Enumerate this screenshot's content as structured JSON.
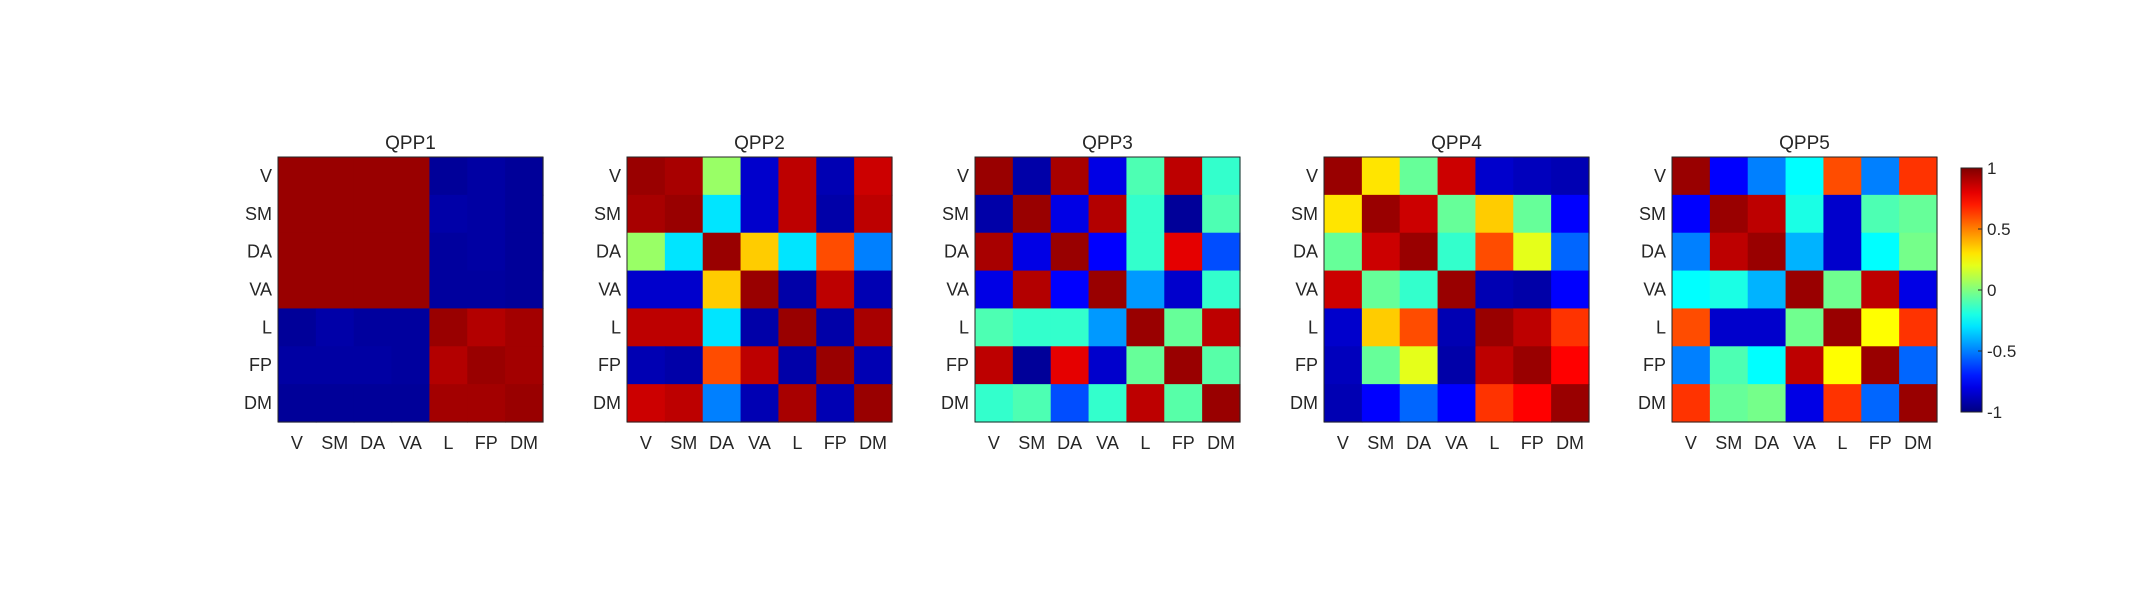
{
  "figure": {
    "background": "#ffffff"
  },
  "chart_data": [
    {
      "type": "heatmap",
      "title": "QPP1",
      "x_labels": [
        "V",
        "SM",
        "DA",
        "VA",
        "L",
        "FP",
        "DM"
      ],
      "y_labels": [
        "V",
        "SM",
        "DA",
        "VA",
        "L",
        "FP",
        "DM"
      ],
      "values": [
        [
          0.95,
          0.95,
          0.95,
          0.95,
          -0.95,
          -0.93,
          -0.95
        ],
        [
          0.95,
          0.95,
          0.95,
          0.95,
          -0.92,
          -0.93,
          -0.95
        ],
        [
          0.95,
          0.95,
          0.95,
          0.95,
          -0.94,
          -0.93,
          -0.95
        ],
        [
          0.95,
          0.95,
          0.95,
          0.95,
          -0.94,
          -0.94,
          -0.95
        ],
        [
          -0.95,
          -0.92,
          -0.94,
          -0.94,
          0.95,
          0.9,
          0.93
        ],
        [
          -0.93,
          -0.93,
          -0.93,
          -0.94,
          0.9,
          0.95,
          0.93
        ],
        [
          -0.95,
          -0.95,
          -0.95,
          -0.95,
          0.93,
          0.93,
          0.95
        ]
      ]
    },
    {
      "type": "heatmap",
      "title": "QPP2",
      "x_labels": [
        "V",
        "SM",
        "DA",
        "VA",
        "L",
        "FP",
        "DM"
      ],
      "y_labels": [
        "V",
        "SM",
        "DA",
        "VA",
        "L",
        "FP",
        "DM"
      ],
      "values": [
        [
          0.95,
          0.92,
          0.05,
          -0.85,
          0.88,
          -0.9,
          0.85
        ],
        [
          0.92,
          0.95,
          -0.3,
          -0.85,
          0.88,
          -0.92,
          0.88
        ],
        [
          0.05,
          -0.3,
          0.95,
          0.35,
          -0.3,
          0.6,
          -0.5
        ],
        [
          -0.85,
          -0.85,
          0.35,
          0.95,
          -0.92,
          0.88,
          -0.9
        ],
        [
          0.88,
          0.88,
          -0.3,
          -0.92,
          0.95,
          -0.92,
          0.92
        ],
        [
          -0.9,
          -0.92,
          0.6,
          0.88,
          -0.92,
          0.95,
          -0.9
        ],
        [
          0.85,
          0.88,
          -0.5,
          -0.9,
          0.92,
          -0.9,
          0.95
        ]
      ]
    },
    {
      "type": "heatmap",
      "title": "QPP3",
      "x_labels": [
        "V",
        "SM",
        "DA",
        "VA",
        "L",
        "FP",
        "DM"
      ],
      "y_labels": [
        "V",
        "SM",
        "DA",
        "VA",
        "L",
        "FP",
        "DM"
      ],
      "values": [
        [
          0.95,
          -0.92,
          0.92,
          -0.8,
          -0.1,
          0.88,
          -0.15
        ],
        [
          -0.92,
          0.95,
          -0.8,
          0.9,
          -0.15,
          -0.95,
          -0.1
        ],
        [
          0.92,
          -0.8,
          0.95,
          -0.75,
          -0.15,
          0.8,
          -0.6
        ],
        [
          -0.8,
          0.9,
          -0.75,
          0.95,
          -0.45,
          -0.85,
          -0.15
        ],
        [
          -0.1,
          -0.15,
          -0.15,
          -0.45,
          0.95,
          -0.05,
          0.88
        ],
        [
          0.88,
          -0.95,
          0.8,
          -0.85,
          -0.05,
          0.95,
          -0.08
        ],
        [
          -0.15,
          -0.1,
          -0.6,
          -0.15,
          0.88,
          -0.08,
          0.95
        ]
      ]
    },
    {
      "type": "heatmap",
      "title": "QPP4",
      "x_labels": [
        "V",
        "SM",
        "DA",
        "VA",
        "L",
        "FP",
        "DM"
      ],
      "y_labels": [
        "V",
        "SM",
        "DA",
        "VA",
        "L",
        "FP",
        "DM"
      ],
      "values": [
        [
          0.95,
          0.3,
          -0.05,
          0.85,
          -0.85,
          -0.88,
          -0.9
        ],
        [
          0.3,
          0.95,
          0.85,
          -0.05,
          0.35,
          -0.05,
          -0.75
        ],
        [
          -0.05,
          0.85,
          0.95,
          -0.15,
          0.6,
          0.2,
          -0.55
        ],
        [
          0.85,
          -0.05,
          -0.15,
          0.95,
          -0.9,
          -0.92,
          -0.75
        ],
        [
          -0.85,
          0.35,
          0.6,
          -0.9,
          0.95,
          0.88,
          0.65
        ],
        [
          -0.88,
          -0.05,
          0.2,
          -0.92,
          0.88,
          0.95,
          0.75
        ],
        [
          -0.9,
          -0.75,
          -0.55,
          -0.75,
          0.65,
          0.75,
          0.95
        ]
      ]
    },
    {
      "type": "heatmap",
      "title": "QPP5",
      "x_labels": [
        "V",
        "SM",
        "DA",
        "VA",
        "L",
        "FP",
        "DM"
      ],
      "y_labels": [
        "V",
        "SM",
        "DA",
        "VA",
        "L",
        "FP",
        "DM"
      ],
      "values": [
        [
          0.95,
          -0.75,
          -0.5,
          -0.25,
          0.6,
          -0.5,
          0.65
        ],
        [
          -0.75,
          0.95,
          0.88,
          -0.2,
          -0.85,
          -0.1,
          -0.05
        ],
        [
          -0.5,
          0.88,
          0.95,
          -0.4,
          -0.85,
          -0.25,
          -0.02
        ],
        [
          -0.25,
          -0.2,
          -0.4,
          0.95,
          -0.03,
          0.88,
          -0.8
        ],
        [
          0.6,
          -0.85,
          -0.85,
          -0.03,
          0.95,
          0.25,
          0.65
        ],
        [
          -0.5,
          -0.1,
          -0.25,
          0.88,
          0.25,
          0.95,
          -0.55
        ],
        [
          0.65,
          -0.05,
          -0.02,
          -0.8,
          0.65,
          -0.55,
          0.95
        ]
      ]
    }
  ],
  "colorbar": {
    "colormap": "jet",
    "range": [
      -1,
      1
    ],
    "ticks": [
      {
        "value": 1,
        "label": "1"
      },
      {
        "value": 0.5,
        "label": "0.5"
      },
      {
        "value": 0,
        "label": "0"
      },
      {
        "value": -0.5,
        "label": "-0.5"
      },
      {
        "value": -1,
        "label": "-1"
      }
    ]
  }
}
